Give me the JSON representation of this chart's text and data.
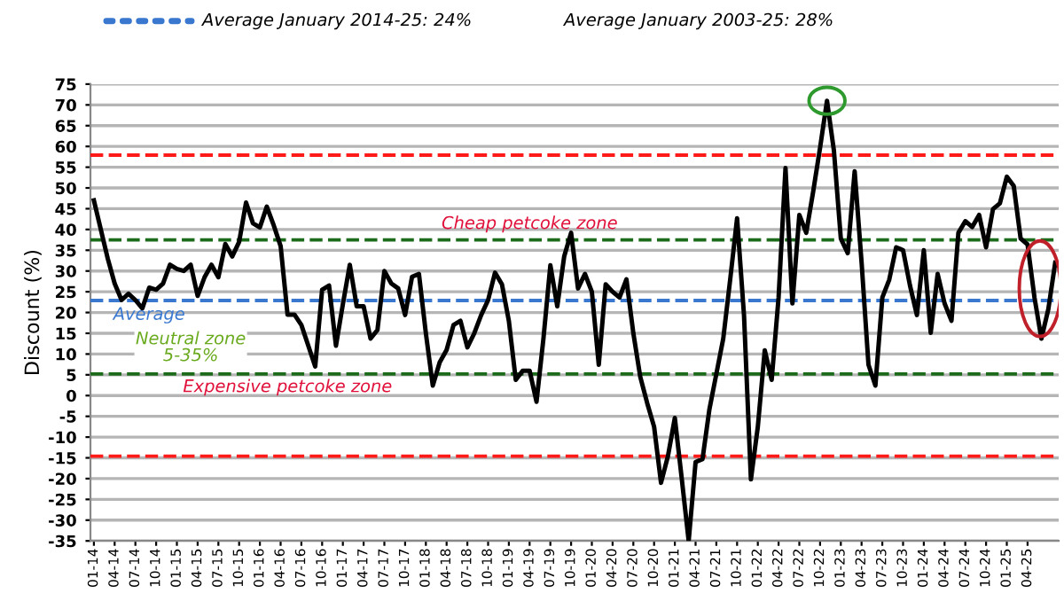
{
  "chart_data": {
    "type": "line",
    "ylabel": "Discount (%)",
    "annotations": [
      "Average January 2014-25: 24%",
      "Average January 2003-25: 28%",
      "Neutral zone\n5-35%"
    ],
    "categories": [
      "01-14",
      null,
      null,
      "04-14",
      null,
      null,
      "07-14",
      null,
      null,
      "10-14",
      null,
      null,
      "01-15",
      null,
      null,
      "04-15",
      null,
      null,
      "07-15",
      null,
      null,
      "10-15",
      null,
      null,
      "01-16",
      null,
      null,
      "04-16",
      null,
      null,
      "07-16",
      null,
      null,
      "10-16",
      null,
      null,
      "01-17",
      null,
      null,
      "04-17",
      null,
      null,
      "07-17",
      null,
      null,
      "10-17",
      null,
      null,
      "01-18",
      null,
      null,
      "04-18",
      null,
      null,
      "07-18",
      null,
      null,
      "10-18",
      null,
      null,
      "01-19",
      null,
      null,
      "04-19",
      null,
      null,
      "07-19",
      null,
      null,
      "10-19",
      null,
      null,
      "01-20",
      null,
      null,
      "04-20",
      null,
      null,
      "07-20",
      null,
      null,
      "10-20",
      null,
      null,
      "01-21",
      null,
      null,
      "04-21",
      null,
      null,
      "07-21",
      null,
      null,
      "10-21",
      null,
      null,
      "01-22",
      null,
      null,
      "04-22",
      null,
      null,
      "07-22",
      null,
      null,
      "10-22",
      null,
      null,
      "01-23",
      null,
      null,
      "04-23",
      null,
      null,
      "07-23",
      null,
      null,
      "10-23",
      null,
      null,
      "01-24",
      null,
      null,
      "04-24",
      null,
      null,
      "07-24",
      null,
      null,
      "10-24",
      null,
      null,
      "01-25",
      null,
      null,
      "04-25",
      null,
      null,
      null,
      null
    ],
    "series": [
      {
        "color": "#000000",
        "values": [
          47,
          40,
          33,
          27,
          23,
          24.5,
          23,
          21,
          26,
          25.5,
          27,
          31.5,
          30.5,
          30,
          31.5,
          24,
          28.5,
          31.5,
          28.5,
          36.5,
          33.5,
          37,
          46.5,
          41.5,
          40.5,
          45.5,
          41,
          36,
          19.5,
          19.5,
          17,
          12,
          7,
          25.5,
          26.5,
          12,
          22,
          31.5,
          21.5,
          21.5,
          13.7,
          15.8,
          30,
          27,
          25.8,
          19.4,
          28.6,
          29.3,
          15,
          2.4,
          8,
          11,
          17,
          18,
          11.6,
          15,
          19.4,
          23,
          29.6,
          26.8,
          18,
          3.8,
          6,
          6,
          -1.5,
          13.7,
          31.4,
          21.5,
          33.5,
          39.2,
          25.8,
          29.3,
          25,
          7.4,
          26.8,
          25,
          23.6,
          28,
          15,
          4.5,
          -1.8,
          -7.5,
          -21,
          -14.6,
          -5.4,
          -20,
          -35,
          -16,
          -15.3,
          -3.3,
          5.2,
          13.7,
          27.9,
          42.7,
          19.4,
          -20.2,
          -7.5,
          10.9,
          3.8,
          23.6,
          54.8,
          22.2,
          43.5,
          39.2,
          49.1,
          59.7,
          71,
          59,
          37.8,
          34.3,
          54,
          32.1,
          7.4,
          2.4,
          23.6,
          27.9,
          35.7,
          35,
          26.5,
          19.4,
          35,
          15.1,
          29.3,
          22.2,
          18,
          39.2,
          42,
          40.6,
          43.5,
          35.7,
          44.9,
          46.3,
          52.7,
          50.5,
          37.8,
          36.4,
          23.6,
          13.7,
          20.8,
          32
        ]
      }
    ],
    "ylim": [
      -35,
      75
    ],
    "yticks": [
      -35,
      -30,
      -25,
      -20,
      -15,
      -10,
      -5,
      0,
      5,
      10,
      15,
      20,
      25,
      30,
      35,
      40,
      45,
      50,
      55,
      60,
      65,
      70,
      75
    ],
    "grid": "y",
    "marker": "none",
    "line_style": "solid",
    "ref_lines": [
      {
        "axis": "y",
        "value": 57.9,
        "color": "#ff1a1a",
        "line_style": "dashed"
      },
      {
        "axis": "y",
        "value": 37.5,
        "color": "#1b6b1b",
        "line_style": "dashed",
        "label": "Cheap petcoke zone"
      },
      {
        "axis": "y",
        "value": 22.9,
        "color": "#3a78d0",
        "line_style": "dashed",
        "label": "Average"
      },
      {
        "axis": "y",
        "value": 5.2,
        "color": "#1b6b1b",
        "line_style": "dashed",
        "label": "Expensive petcoke zone"
      },
      {
        "axis": "y",
        "value": -14.6,
        "color": "#ff1a1a",
        "line_style": "dashed"
      }
    ]
  }
}
